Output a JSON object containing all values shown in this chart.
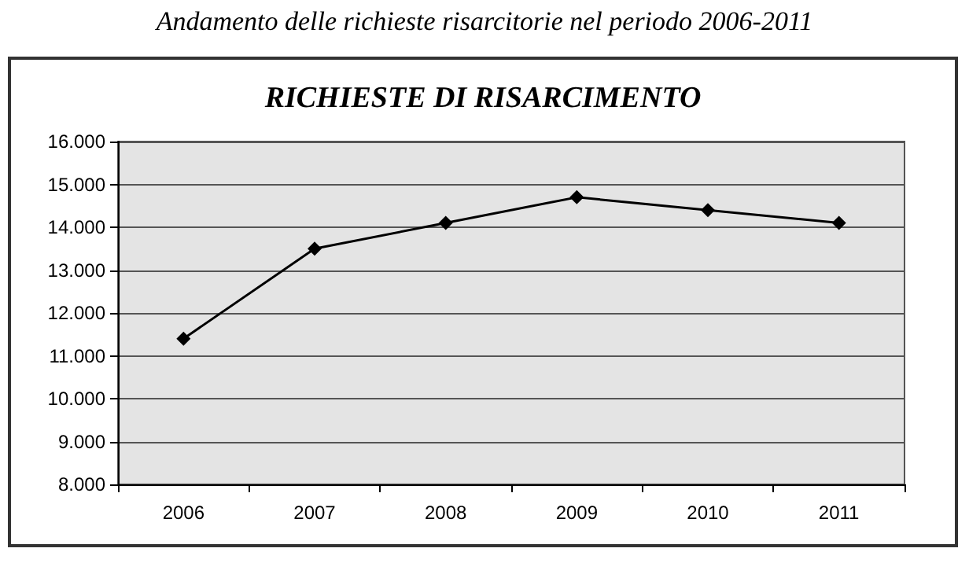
{
  "chart_data": {
    "type": "line",
    "title": "Andamento delle richieste risarcitorie nel periodo 2006-2011",
    "subtitle": "RICHIESTE DI RISARCIMENTO",
    "categories": [
      "2006",
      "2007",
      "2008",
      "2009",
      "2010",
      "2011"
    ],
    "series": [
      {
        "color": "#000000",
        "values": [
          11400,
          13500,
          14100,
          14700,
          14400,
          14100
        ]
      }
    ],
    "ylim": [
      8000,
      16000
    ],
    "yticks": [
      {
        "value": 8000,
        "label": "8.000"
      },
      {
        "value": 9000,
        "label": "9.000"
      },
      {
        "value": 10000,
        "label": "10.000"
      },
      {
        "value": 11000,
        "label": "11.000"
      },
      {
        "value": 12000,
        "label": "12.000"
      },
      {
        "value": 13000,
        "label": "13.000"
      },
      {
        "value": 14000,
        "label": "14.000"
      },
      {
        "value": 15000,
        "label": "15.000"
      },
      {
        "value": 16000,
        "label": "16.000"
      }
    ],
    "grid": "y",
    "marker": "diamond",
    "line_style": "solid"
  }
}
